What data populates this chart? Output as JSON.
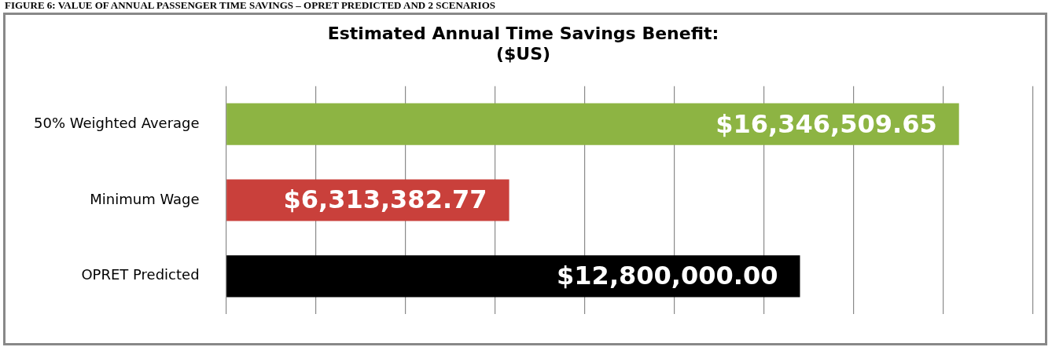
{
  "chart_data": {
    "type": "bar",
    "orientation": "horizontal",
    "title": "Estimated Annual Time Savings Benefit:\n($US)",
    "annotations": [
      "FIGURE 6: VALUE OF ANNUAL PASSENGER TIME SAVINGS – OPRET PREDICTED AND 2 SCENARIOS"
    ],
    "categories": [
      "50% Weighted Average",
      "Minimum Wage",
      "OPRET Predicted"
    ],
    "values": [
      16346509.65,
      6313382.77,
      12800000
    ],
    "colors": [
      "#8db443",
      "#c9403b",
      "#000000"
    ],
    "value_labels": [
      "$16,346,509.65",
      "$6,313,382.77",
      "$12,800,000.00"
    ],
    "xlim": [
      0,
      18000000
    ],
    "xticks": [
      {
        "value": 0,
        "label": null
      },
      {
        "value": 2000000,
        "label": null
      },
      {
        "value": 4000000,
        "label": null
      },
      {
        "value": 6000000,
        "label": null
      },
      {
        "value": 8000000,
        "label": null
      },
      {
        "value": 10000000,
        "label": null
      },
      {
        "value": 12000000,
        "label": null
      },
      {
        "value": 14000000,
        "label": null
      },
      {
        "value": 16000000,
        "label": null
      },
      {
        "value": 18000000,
        "label": null
      }
    ],
    "grid": "x",
    "legend": false
  }
}
